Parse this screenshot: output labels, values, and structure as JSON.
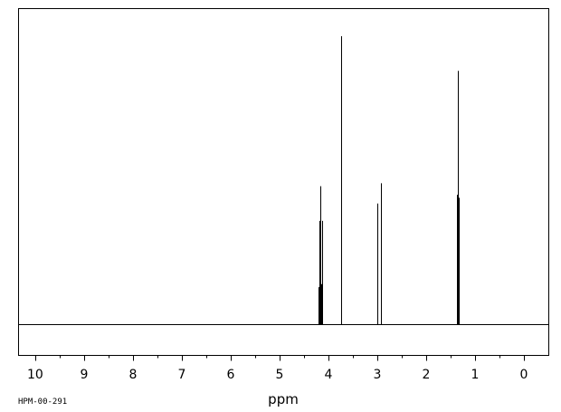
{
  "chart_data": {
    "type": "line",
    "title": "",
    "xlabel": "ppm",
    "ylabel": "",
    "sample_code": "HPM-00-291",
    "xlim": [
      10.35,
      -0.5
    ],
    "ylim": [
      0,
      1
    ],
    "x_reversed": true,
    "grid": false,
    "x_ticks": [
      10,
      9,
      8,
      7,
      6,
      5,
      4,
      3,
      2,
      1,
      0
    ],
    "x_tick_labels": [
      "10",
      "9",
      "8",
      "7",
      "6",
      "5",
      "4",
      "3",
      "2",
      "1",
      "0"
    ],
    "series": [
      {
        "peaks": [
          {
            "x": 4.2,
            "y": 0.13
          },
          {
            "x": 4.19,
            "y": 0.14
          },
          {
            "x": 4.18,
            "y": 0.36
          },
          {
            "x": 4.17,
            "y": 0.12
          },
          {
            "x": 4.16,
            "y": 0.48
          },
          {
            "x": 4.15,
            "y": 0.14
          },
          {
            "x": 4.14,
            "y": 0.14
          },
          {
            "x": 4.13,
            "y": 0.36
          },
          {
            "x": 4.12,
            "y": 0.14
          },
          {
            "x": 3.74,
            "y": 1.0
          },
          {
            "x": 3.0,
            "y": 0.42
          },
          {
            "x": 2.93,
            "y": 0.49
          },
          {
            "x": 1.37,
            "y": 0.45
          },
          {
            "x": 1.35,
            "y": 0.88
          },
          {
            "x": 1.33,
            "y": 0.44
          }
        ]
      }
    ]
  }
}
